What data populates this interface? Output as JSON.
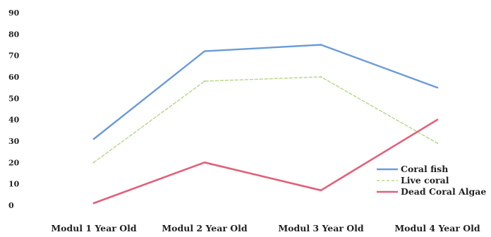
{
  "chart_data": {
    "type": "line",
    "title": "",
    "xlabel": "",
    "ylabel": "",
    "ylim": [
      0,
      90
    ],
    "yticks": [
      0,
      10,
      20,
      30,
      40,
      50,
      60,
      70,
      80,
      90
    ],
    "grid": false,
    "legend_position": "bottom-right",
    "categories": [
      "Modul 1 Year Old",
      "Modul 2 Year Old",
      "Modul 3 Year Old",
      "Modul 4 Year Old"
    ],
    "series": [
      {
        "name": "Coral fish",
        "values": [
          31,
          72,
          75,
          55
        ],
        "color": "#6b9bd9",
        "dashed": false,
        "width": 2.4
      },
      {
        "name": "Live coral",
        "values": [
          20,
          58,
          60,
          29
        ],
        "color": "#b9d88c",
        "dashed": true,
        "width": 1.5
      },
      {
        "name": "Dead Coral Algae",
        "values": [
          1,
          20,
          7,
          40
        ],
        "color": "#e0607a",
        "dashed": false,
        "width": 2.6
      }
    ]
  }
}
